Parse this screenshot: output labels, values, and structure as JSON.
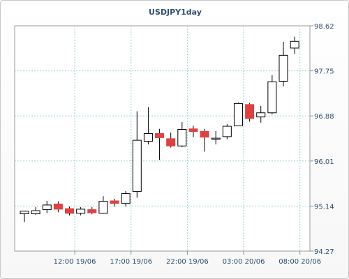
{
  "chart_data": {
    "type": "candlestick",
    "title": "USDJPY1day",
    "xlabel": "",
    "ylabel": "",
    "ylim": [
      94.27,
      98.62
    ],
    "y_ticks": [
      94.27,
      95.14,
      96.01,
      96.88,
      97.75,
      98.62
    ],
    "y_tick_labels": [
      "94.27",
      "95.14",
      "96.01",
      "96.88",
      "97.75",
      "98.62"
    ],
    "x_tick_labels": [
      "12:00 19/06",
      "17:00 19/06",
      "22:00 19/06",
      "03:00 20/06",
      "08:00 20/06"
    ],
    "x_tick_after_candle": [
      4.5,
      9.5,
      14.5,
      19.5,
      24.5
    ],
    "grid": true,
    "bullish_color": "#ffffff",
    "bearish_color": "#e04040",
    "candles": [
      {
        "o": 94.99,
        "h": 95.05,
        "l": 94.83,
        "c": 95.04
      },
      {
        "o": 94.99,
        "h": 95.12,
        "l": 94.97,
        "c": 95.05
      },
      {
        "o": 95.07,
        "h": 95.24,
        "l": 95.0,
        "c": 95.16
      },
      {
        "o": 95.18,
        "h": 95.23,
        "l": 95.02,
        "c": 95.08
      },
      {
        "o": 95.09,
        "h": 95.13,
        "l": 94.96,
        "c": 95.0
      },
      {
        "o": 95.0,
        "h": 95.12,
        "l": 94.96,
        "c": 95.08
      },
      {
        "o": 95.07,
        "h": 95.12,
        "l": 94.98,
        "c": 95.01
      },
      {
        "o": 95.0,
        "h": 95.33,
        "l": 94.99,
        "c": 95.23
      },
      {
        "o": 95.24,
        "h": 95.28,
        "l": 95.13,
        "c": 95.19
      },
      {
        "o": 95.19,
        "h": 95.43,
        "l": 95.13,
        "c": 95.38
      },
      {
        "o": 95.42,
        "h": 96.97,
        "l": 95.3,
        "c": 96.41
      },
      {
        "o": 96.39,
        "h": 97.05,
        "l": 96.33,
        "c": 96.54
      },
      {
        "o": 96.54,
        "h": 96.63,
        "l": 96.03,
        "c": 96.46
      },
      {
        "o": 96.44,
        "h": 96.56,
        "l": 96.27,
        "c": 96.3
      },
      {
        "o": 96.3,
        "h": 96.76,
        "l": 96.28,
        "c": 96.62
      },
      {
        "o": 96.63,
        "h": 96.69,
        "l": 96.47,
        "c": 96.58
      },
      {
        "o": 96.58,
        "h": 96.63,
        "l": 96.19,
        "c": 96.47
      },
      {
        "o": 96.45,
        "h": 96.59,
        "l": 96.33,
        "c": 96.45
      },
      {
        "o": 96.48,
        "h": 96.72,
        "l": 96.43,
        "c": 96.68
      },
      {
        "o": 96.69,
        "h": 97.14,
        "l": 96.69,
        "c": 97.12
      },
      {
        "o": 97.1,
        "h": 97.13,
        "l": 96.77,
        "c": 96.83
      },
      {
        "o": 96.86,
        "h": 97.07,
        "l": 96.75,
        "c": 96.94
      },
      {
        "o": 96.94,
        "h": 97.67,
        "l": 96.91,
        "c": 97.54
      },
      {
        "o": 97.55,
        "h": 98.31,
        "l": 97.45,
        "c": 98.05
      },
      {
        "o": 98.19,
        "h": 98.41,
        "l": 98.08,
        "c": 98.32
      }
    ]
  }
}
